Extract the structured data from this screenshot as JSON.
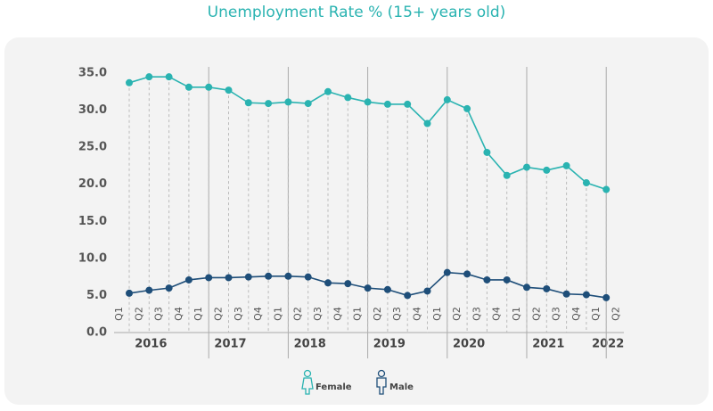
{
  "chart_data": {
    "type": "line",
    "title": "Unemployment Rate % (15+ years old)",
    "categories": [
      "Q1",
      "Q2",
      "Q3",
      "Q4",
      "Q1",
      "Q2",
      "Q3",
      "Q4",
      "Q1",
      "Q2",
      "Q3",
      "Q4",
      "Q1",
      "Q2",
      "Q3",
      "Q4",
      "Q1",
      "Q2",
      "Q3",
      "Q4",
      "Q1",
      "Q2",
      "Q3",
      "Q4",
      "Q1",
      "Q2"
    ],
    "years": [
      "2016",
      "2017",
      "2018",
      "2019",
      "2020",
      "2021",
      "2022"
    ],
    "series": [
      {
        "name": "Female",
        "color": "#2ab3b1",
        "values": [
          33.7,
          34.5,
          34.5,
          33.1,
          33.1,
          32.7,
          31.0,
          30.9,
          31.1,
          30.9,
          32.5,
          31.7,
          31.1,
          30.8,
          30.8,
          28.2,
          31.4,
          30.2,
          24.3,
          21.2,
          22.3,
          21.9,
          22.5,
          20.2,
          19.3,
          null
        ]
      },
      {
        "name": "Male",
        "color": "#1e4e79",
        "values": [
          5.3,
          5.7,
          6.0,
          7.1,
          7.4,
          7.4,
          7.5,
          7.6,
          7.6,
          7.5,
          6.7,
          6.6,
          6.0,
          5.8,
          5.0,
          5.6,
          8.1,
          7.9,
          7.1,
          7.1,
          6.1,
          5.9,
          5.2,
          5.1,
          4.7,
          null
        ]
      }
    ],
    "ylim": [
      0,
      35
    ],
    "yticks": [
      {
        "value": 0,
        "label": "0.0"
      },
      {
        "value": 5,
        "label": "5.0"
      },
      {
        "value": 10,
        "label": "10.0"
      },
      {
        "value": 15,
        "label": "15.0"
      },
      {
        "value": 20,
        "label": "20.0"
      },
      {
        "value": 25,
        "label": "25.0"
      },
      {
        "value": 30,
        "label": "30.0"
      },
      {
        "value": 35,
        "label": "35.0"
      }
    ]
  }
}
